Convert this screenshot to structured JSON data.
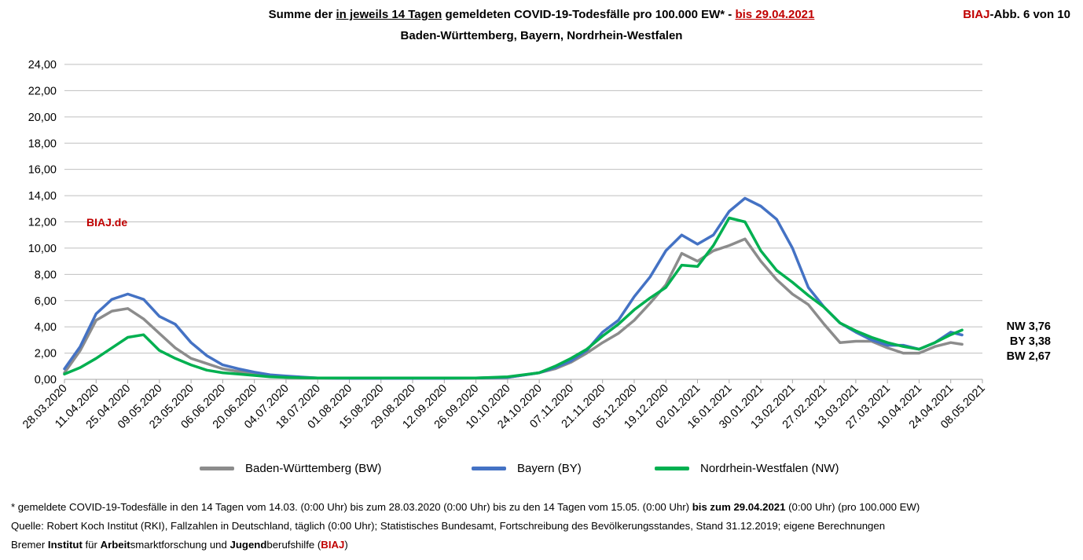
{
  "header": {
    "title_parts": [
      "Summe der ",
      "in jeweils 14 Tagen",
      " gemeldeten COVID-19-Todesfälle pro 100.000 EW* - ",
      "bis 29.04.2021"
    ],
    "subtitle": "Baden-Württemberg, Bayern, Nordrhein-Westfalen",
    "figure_brand": "BIAJ",
    "figure_label": "-Abb. 6 von 10"
  },
  "watermark": "BIAJ.de",
  "end_labels": [
    "NW 3,76",
    "BY 3,38",
    "BW 2,67"
  ],
  "legend": [
    {
      "label": "Baden-Württemberg (BW)",
      "color": "#8c8c8c"
    },
    {
      "label": "Bayern (BY)",
      "color": "#4472c4"
    },
    {
      "label": "Nordrhein-Westfalen (NW)",
      "color": "#00b050"
    }
  ],
  "footnotes": {
    "line1_a": "* gemeldete COVID-19-Todesfälle in den 14 Tagen vom 14.03. (0:00 Uhr) bis zum 28.03.2020 (0:00 Uhr) bis zu den 14 Tagen vom 15.05. (0:00 Uhr) ",
    "line1_b": "bis zum 29.04.2021",
    "line1_c": " (0:00 Uhr) (pro 100.000 EW)",
    "line2": "Quelle: Robert Koch Institut (RKI), Fallzahlen in Deutschland, täglich (0:00 Uhr); Statistisches Bundesamt, Fortschreibung des Bevölkerungsstandes, Stand 31.12.2019; eigene Berechnungen",
    "line3_parts": [
      {
        "text": "Bremer ",
        "bold": false
      },
      {
        "text": "Institut",
        "bold": true
      },
      {
        "text": " für ",
        "bold": false
      },
      {
        "text": "Arbeit",
        "bold": true
      },
      {
        "text": "smarktforschung und ",
        "bold": false
      },
      {
        "text": "Jugend",
        "bold": true
      },
      {
        "text": "berufshilfe (",
        "bold": false
      },
      {
        "text": "BIAJ",
        "bold": true,
        "red": true
      },
      {
        "text": ")",
        "bold": false
      }
    ]
  },
  "chart_data": {
    "type": "line",
    "ylim": [
      0,
      24
    ],
    "y_ticks": [
      "0,00",
      "2,00",
      "4,00",
      "6,00",
      "8,00",
      "10,00",
      "12,00",
      "14,00",
      "16,00",
      "18,00",
      "20,00",
      "22,00",
      "24,00"
    ],
    "x_ticks": [
      "28.03.2020",
      "11.04.2020",
      "25.04.2020",
      "09.05.2020",
      "23.05.2020",
      "06.06.2020",
      "20.06.2020",
      "04.07.2020",
      "18.07.2020",
      "01.08.2020",
      "15.08.2020",
      "29.08.2020",
      "12.09.2020",
      "26.09.2020",
      "10.10.2020",
      "24.10.2020",
      "07.11.2020",
      "21.11.2020",
      "05.12.2020",
      "19.12.2020",
      "02.01.2021",
      "16.01.2021",
      "30.01.2021",
      "13.02.2021",
      "27.02.2021",
      "13.03.2021",
      "27.03.2021",
      "10.04.2021",
      "24.04.2021",
      "08.05.2021"
    ],
    "x_range": [
      "28.03.2020",
      "08.05.2021"
    ],
    "grid": true,
    "legend_position": "bottom",
    "series": [
      {
        "name": "Baden-Württemberg (BW)",
        "color": "#8c8c8c",
        "x": [
          "28.03.2020",
          "04.04.2020",
          "11.04.2020",
          "18.04.2020",
          "25.04.2020",
          "02.05.2020",
          "09.05.2020",
          "16.05.2020",
          "23.05.2020",
          "30.05.2020",
          "06.06.2020",
          "13.06.2020",
          "20.06.2020",
          "27.06.2020",
          "04.07.2020",
          "18.07.2020",
          "01.08.2020",
          "15.08.2020",
          "29.08.2020",
          "12.09.2020",
          "26.09.2020",
          "10.10.2020",
          "24.10.2020",
          "31.10.2020",
          "07.11.2020",
          "14.11.2020",
          "21.11.2020",
          "28.11.2020",
          "05.12.2020",
          "12.12.2020",
          "19.12.2020",
          "26.12.2020",
          "02.01.2021",
          "09.01.2021",
          "16.01.2021",
          "23.01.2021",
          "30.01.2021",
          "06.02.2021",
          "13.02.2021",
          "20.02.2021",
          "27.02.2021",
          "06.03.2021",
          "13.03.2021",
          "20.03.2021",
          "27.03.2021",
          "03.04.2021",
          "10.04.2021",
          "17.04.2021",
          "24.04.2021",
          "29.04.2021"
        ],
        "y": [
          0.5,
          2.2,
          4.5,
          5.2,
          5.4,
          4.6,
          3.5,
          2.4,
          1.6,
          1.2,
          0.8,
          0.6,
          0.4,
          0.25,
          0.15,
          0.1,
          0.08,
          0.08,
          0.08,
          0.08,
          0.1,
          0.15,
          0.5,
          0.8,
          1.3,
          2.0,
          2.8,
          3.5,
          4.5,
          5.8,
          7.2,
          9.6,
          9.0,
          9.8,
          10.2,
          10.7,
          9.0,
          7.6,
          6.5,
          5.7,
          4.2,
          2.8,
          2.9,
          2.9,
          2.4,
          2.0,
          2.0,
          2.5,
          2.8,
          2.67
        ]
      },
      {
        "name": "Bayern (BY)",
        "color": "#4472c4",
        "x": [
          "28.03.2020",
          "04.04.2020",
          "11.04.2020",
          "18.04.2020",
          "25.04.2020",
          "02.05.2020",
          "09.05.2020",
          "16.05.2020",
          "23.05.2020",
          "30.05.2020",
          "06.06.2020",
          "13.06.2020",
          "20.06.2020",
          "27.06.2020",
          "04.07.2020",
          "18.07.2020",
          "01.08.2020",
          "15.08.2020",
          "29.08.2020",
          "12.09.2020",
          "26.09.2020",
          "10.10.2020",
          "24.10.2020",
          "31.10.2020",
          "07.11.2020",
          "14.11.2020",
          "21.11.2020",
          "28.11.2020",
          "05.12.2020",
          "12.12.2020",
          "19.12.2020",
          "26.12.2020",
          "02.01.2021",
          "09.01.2021",
          "16.01.2021",
          "23.01.2021",
          "30.01.2021",
          "06.02.2021",
          "13.02.2021",
          "20.02.2021",
          "27.02.2021",
          "06.03.2021",
          "13.03.2021",
          "20.03.2021",
          "27.03.2021",
          "03.04.2021",
          "10.04.2021",
          "17.04.2021",
          "24.04.2021",
          "29.04.2021"
        ],
        "y": [
          0.8,
          2.5,
          5.0,
          6.1,
          6.5,
          6.1,
          4.8,
          4.2,
          2.8,
          1.8,
          1.1,
          0.8,
          0.55,
          0.35,
          0.25,
          0.1,
          0.08,
          0.08,
          0.08,
          0.08,
          0.1,
          0.15,
          0.5,
          0.9,
          1.4,
          2.2,
          3.6,
          4.5,
          6.3,
          7.8,
          9.8,
          11.0,
          10.3,
          11.0,
          12.8,
          13.8,
          13.2,
          12.2,
          10.0,
          7.0,
          5.5,
          4.3,
          3.6,
          3.0,
          2.6,
          2.6,
          2.3,
          2.8,
          3.6,
          3.38
        ]
      },
      {
        "name": "Nordrhein-Westfalen (NW)",
        "color": "#00b050",
        "x": [
          "28.03.2020",
          "04.04.2020",
          "11.04.2020",
          "18.04.2020",
          "25.04.2020",
          "02.05.2020",
          "09.05.2020",
          "16.05.2020",
          "23.05.2020",
          "30.05.2020",
          "06.06.2020",
          "13.06.2020",
          "20.06.2020",
          "27.06.2020",
          "04.07.2020",
          "18.07.2020",
          "01.08.2020",
          "15.08.2020",
          "29.08.2020",
          "12.09.2020",
          "26.09.2020",
          "10.10.2020",
          "24.10.2020",
          "31.10.2020",
          "07.11.2020",
          "14.11.2020",
          "21.11.2020",
          "28.11.2020",
          "05.12.2020",
          "12.12.2020",
          "19.12.2020",
          "26.12.2020",
          "02.01.2021",
          "09.01.2021",
          "16.01.2021",
          "23.01.2021",
          "30.01.2021",
          "06.02.2021",
          "13.02.2021",
          "20.02.2021",
          "27.02.2021",
          "06.03.2021",
          "13.03.2021",
          "20.03.2021",
          "27.03.2021",
          "03.04.2021",
          "10.04.2021",
          "17.04.2021",
          "24.04.2021",
          "29.04.2021"
        ],
        "y": [
          0.4,
          0.9,
          1.6,
          2.4,
          3.2,
          3.4,
          2.2,
          1.6,
          1.1,
          0.7,
          0.5,
          0.4,
          0.3,
          0.2,
          0.15,
          0.1,
          0.1,
          0.1,
          0.1,
          0.1,
          0.1,
          0.2,
          0.5,
          1.0,
          1.6,
          2.3,
          3.3,
          4.2,
          5.3,
          6.2,
          7.0,
          8.7,
          8.6,
          10.2,
          12.3,
          12.0,
          9.8,
          8.3,
          7.4,
          6.4,
          5.5,
          4.3,
          3.7,
          3.2,
          2.8,
          2.5,
          2.3,
          2.8,
          3.4,
          3.76
        ]
      }
    ]
  }
}
